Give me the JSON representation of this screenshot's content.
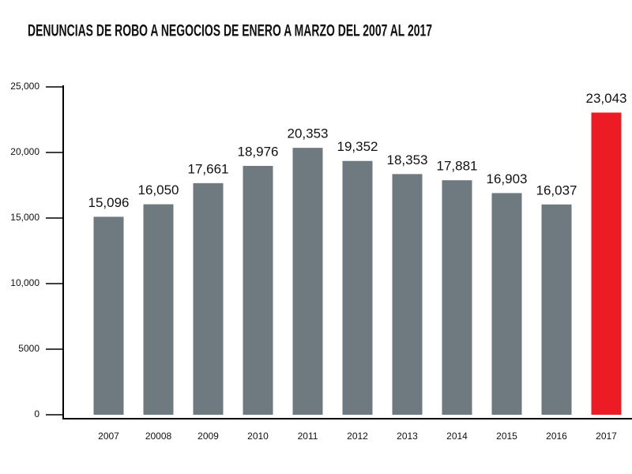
{
  "chart_data": {
    "type": "bar",
    "title": "DENUNCIAS DE ROBO A NEGOCIOS DE ENERO A MARZO DEL 2007 AL 2017",
    "categories": [
      "2007",
      "20008",
      "2009",
      "2010",
      "2011",
      "2012",
      "2013",
      "2014",
      "2015",
      "2016",
      "2017"
    ],
    "values": [
      15096,
      16050,
      17661,
      18976,
      20353,
      19352,
      18353,
      17881,
      16903,
      16037,
      23043
    ],
    "value_labels": [
      "15,096",
      "16,050",
      "17,661",
      "18,976",
      "20,353",
      "19,352",
      "18,353",
      "17,881",
      "16,903",
      "16,037",
      "23,043"
    ],
    "colors": [
      "#6f7a80",
      "#6f7a80",
      "#6f7a80",
      "#6f7a80",
      "#6f7a80",
      "#6f7a80",
      "#6f7a80",
      "#6f7a80",
      "#6f7a80",
      "#6f7a80",
      "#ed1c24"
    ],
    "ylim": [
      0,
      25000
    ],
    "yticks": [
      0,
      5000,
      {
        "value": 10000,
        "label": "10,000"
      },
      {
        "value": 15000,
        "label": "15,000"
      },
      {
        "value": 20000,
        "label": "20,000"
      },
      {
        "value": 25000,
        "label": "25,000"
      }
    ]
  }
}
